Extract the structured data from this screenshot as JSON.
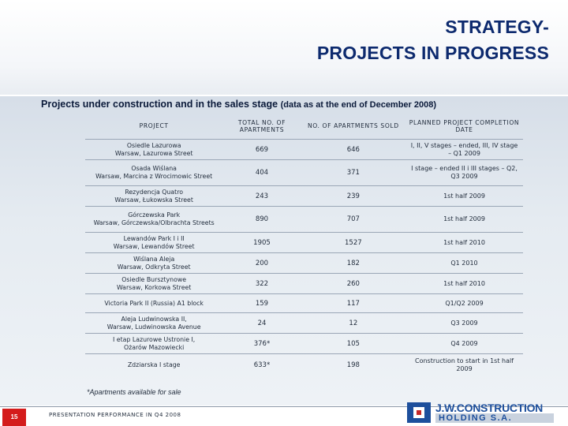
{
  "header": {
    "title_line1": "STRATEGY-",
    "title_line2": "PROJECTS IN PROGRESS"
  },
  "subtitle": {
    "main": "Projects under construction and in the sales stage",
    "note": "(data as at the end of December 2008)"
  },
  "table": {
    "columns": [
      "PROJECT",
      "TOTAL NO. OF APARTMENTS",
      "NO. OF APARTMENTS SOLD",
      "PLANNED PROJECT COMPLETION DATE"
    ],
    "rows": [
      {
        "project_line1": "Osiedle Lazurowa",
        "project_line2": "Warsaw, Lazurowa Street",
        "total": "669",
        "sold": "646",
        "completion": "I, II, V stages – ended, III, IV stage – Q1 2009"
      },
      {
        "project_line1": "Osada Wiślana",
        "project_line2": "Warsaw, Marcina z Wrocimowic Street",
        "total": "404",
        "sold": "371",
        "completion": "I stage – ended II i III stages – Q2, Q3 2009"
      },
      {
        "project_line1": "Rezydencja Quatro",
        "project_line2": "Warsaw, Łukowska Street",
        "total": "243",
        "sold": "239",
        "completion": "1st half 2009"
      },
      {
        "project_line1": "Górczewska Park",
        "project_line2": "Warsaw, Górczewska/Olbrachta Streets",
        "total": "890",
        "sold": "707",
        "completion": "1st half 2009"
      },
      {
        "project_line1": "Lewandów Park I i II",
        "project_line2": "Warsaw, Lewandów Street",
        "total": "1905",
        "sold": "1527",
        "completion": "1st half 2010"
      },
      {
        "project_line1": "Wiślana Aleja",
        "project_line2": "Warsaw, Odkryta Street",
        "total": "200",
        "sold": "182",
        "completion": "Q1 2010"
      },
      {
        "project_line1": "Osiedle Bursztynowe",
        "project_line2": "Warsaw, Korkowa Street",
        "total": "322",
        "sold": "260",
        "completion": "1st half 2010"
      },
      {
        "project_line1": "Victoria Park II (Russia) A1 block",
        "project_line2": "",
        "total": "159",
        "sold": "117",
        "completion": "Q1/Q2 2009"
      },
      {
        "project_line1": "Aleja Ludwinowska II,",
        "project_line2": "Warsaw, Ludwinowska Avenue",
        "total": "24",
        "sold": "12",
        "completion": "Q3 2009"
      },
      {
        "project_line1": "I etap Lazurowe Ustronie I,",
        "project_line2": "Ożarów Mazowiecki",
        "total": "376*",
        "sold": "105",
        "completion": "Q4 2009"
      },
      {
        "project_line1": "Zdziarska I stage",
        "project_line2": "",
        "total": "633*",
        "sold": "198",
        "completion": "Construction to start in 1st half 2009"
      }
    ]
  },
  "footnote": "*Apartments available for sale",
  "footer": {
    "page_number": "15",
    "text": "PRESENTATION PERFORMANCE IN Q4 2008"
  },
  "logo": {
    "line1": "J.W.CONSTRUCTION",
    "line2": "HOLDING S.A."
  },
  "colors": {
    "title": "#0d2a6e",
    "page_badge": "#d41c1c",
    "logo_blue": "#1d4f9c"
  }
}
